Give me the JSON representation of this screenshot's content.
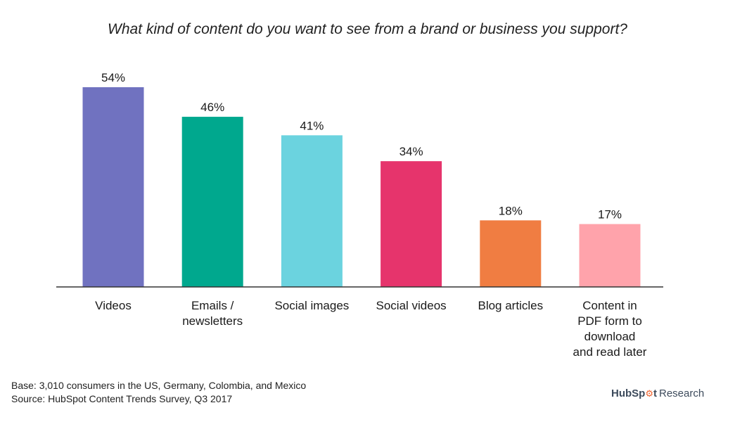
{
  "chart_data": {
    "type": "bar",
    "title": "What kind of content do you want to see from a brand or business you support?",
    "categories": [
      "Videos",
      "Emails /\nnewsletters",
      "Social images",
      "Social videos",
      "Blog articles",
      "Content in\nPDF form to\ndownload\nand read later"
    ],
    "values": [
      54,
      46,
      41,
      34,
      18,
      17
    ],
    "data_labels": [
      "54%",
      "46%",
      "41%",
      "34%",
      "18%",
      "17%"
    ],
    "colors": [
      "#7072c0",
      "#00a88e",
      "#6bd3df",
      "#e6346c",
      "#f07d42",
      "#ffa3ab"
    ],
    "unit": "%",
    "ylim": [
      0,
      54
    ],
    "grid": false,
    "legend": "none"
  },
  "notes": {
    "base": "Base: 3,010 consumers in the US, Germany, Colombia, and Mexico",
    "source": "Source: HubSpot Content Trends Survey, Q3 2017"
  },
  "brand": {
    "name_start": "HubSp",
    "name_mark": "⚙",
    "name_end": "t",
    "suffix": "Research"
  }
}
